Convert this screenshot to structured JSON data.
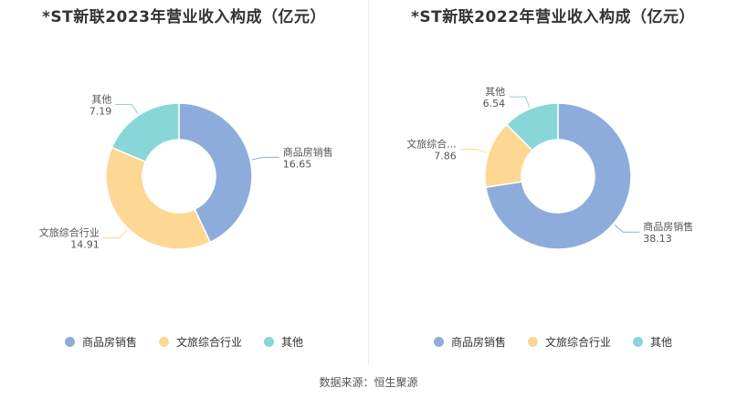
{
  "colors": {
    "商品房销售": "#8eacdb",
    "文旅综合行业": "#fdd895",
    "其他": "#89d6d8"
  },
  "legend": [
    "商品房销售",
    "文旅综合行业",
    "其他"
  ],
  "source": "数据来源：恒生聚源",
  "chart_data": [
    {
      "type": "pie",
      "variant": "donut",
      "title": "*ST新联2023年营业收入构成（亿元）",
      "slices": [
        {
          "label": "商品房销售",
          "value": 16.65
        },
        {
          "label": "文旅综合行业",
          "value": 14.91
        },
        {
          "label": "其他",
          "value": 7.19
        }
      ]
    },
    {
      "type": "pie",
      "variant": "donut",
      "title": "*ST新联2022年营业收入构成（亿元）",
      "slices": [
        {
          "label": "商品房销售",
          "value": 38.13
        },
        {
          "label": "文旅综合...",
          "value": 7.86
        },
        {
          "label": "其他",
          "value": 6.54
        }
      ]
    }
  ]
}
